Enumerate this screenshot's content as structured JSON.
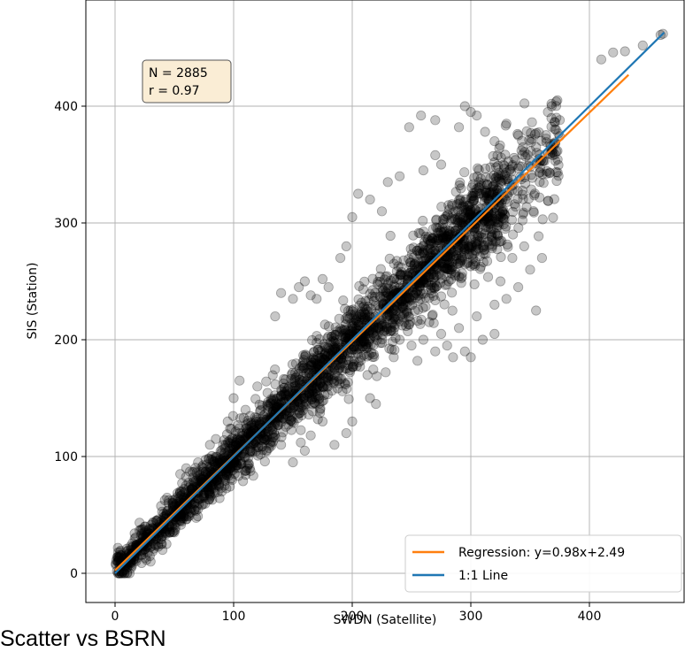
{
  "caption": "Scatter vs BSRN",
  "chart_data": {
    "type": "scatter",
    "xlabel": "SWDN (Satellite)",
    "ylabel": "SIS (Station)",
    "xlim": [
      -20,
      475
    ],
    "ylim": [
      -20,
      485
    ],
    "xticks": [
      0,
      100,
      200,
      300,
      400
    ],
    "yticks": [
      0,
      100,
      200,
      300,
      400
    ],
    "grid": true,
    "legend_position": "lower-right",
    "stats_box": {
      "n_text": "N = 2885",
      "r_text": "r = 0.97"
    },
    "n_points": 2885,
    "point_color": "#000000",
    "point_opacity": 0.22,
    "series": [
      {
        "name": "Regression: y=0.98x+2.49",
        "type": "line",
        "color": "#ff7f0e",
        "slope": 0.98,
        "intercept": 2.49,
        "x_range": [
          0,
          433
        ]
      },
      {
        "name": "1:1 Line",
        "type": "line",
        "color": "#1f77b4",
        "slope": 1.0,
        "intercept": 0,
        "x_range": [
          0,
          463
        ]
      }
    ],
    "outlier_points": [
      [
        462,
        462
      ],
      [
        460,
        461
      ],
      [
        445,
        452
      ],
      [
        430,
        447
      ],
      [
        420,
        446
      ],
      [
        410,
        440
      ],
      [
        373,
        405
      ],
      [
        368,
        402
      ],
      [
        365,
        395
      ],
      [
        375,
        388
      ],
      [
        370,
        368
      ],
      [
        248,
        382
      ],
      [
        258,
        392
      ],
      [
        270,
        388
      ],
      [
        290,
        382
      ],
      [
        295,
        400
      ],
      [
        300,
        395
      ],
      [
        305,
        392
      ],
      [
        312,
        378
      ],
      [
        320,
        370
      ],
      [
        330,
        385
      ],
      [
        340,
        375
      ],
      [
        355,
        365
      ],
      [
        270,
        358
      ],
      [
        275,
        350
      ],
      [
        260,
        345
      ],
      [
        240,
        340
      ],
      [
        230,
        335
      ],
      [
        215,
        320
      ],
      [
        205,
        325
      ],
      [
        225,
        310
      ],
      [
        200,
        305
      ],
      [
        195,
        280
      ],
      [
        190,
        270
      ],
      [
        140,
        240
      ],
      [
        150,
        235
      ],
      [
        160,
        250
      ],
      [
        165,
        238
      ],
      [
        180,
        245
      ],
      [
        135,
        220
      ],
      [
        170,
        235
      ],
      [
        175,
        252
      ],
      [
        155,
        245
      ],
      [
        235,
        185
      ],
      [
        240,
        200
      ],
      [
        250,
        195
      ],
      [
        255,
        182
      ],
      [
        260,
        200
      ],
      [
        270,
        190
      ],
      [
        285,
        185
      ],
      [
        295,
        190
      ],
      [
        300,
        185
      ],
      [
        310,
        200
      ],
      [
        320,
        205
      ],
      [
        320,
        230
      ],
      [
        330,
        235
      ],
      [
        340,
        245
      ],
      [
        350,
        260
      ],
      [
        360,
        270
      ],
      [
        335,
        270
      ],
      [
        345,
        280
      ],
      [
        325,
        250
      ],
      [
        355,
        225
      ],
      [
        290,
        210
      ],
      [
        280,
        195
      ],
      [
        275,
        205
      ],
      [
        265,
        215
      ],
      [
        305,
        220
      ],
      [
        185,
        110
      ],
      [
        195,
        120
      ],
      [
        200,
        130
      ],
      [
        175,
        130
      ],
      [
        215,
        150
      ],
      [
        220,
        145
      ],
      [
        150,
        95
      ],
      [
        140,
        110
      ],
      [
        160,
        105
      ],
      [
        165,
        118
      ],
      [
        100,
        150
      ],
      [
        110,
        140
      ],
      [
        95,
        130
      ],
      [
        120,
        160
      ],
      [
        105,
        165
      ],
      [
        80,
        110
      ],
      [
        85,
        115
      ],
      [
        60,
        90
      ],
      [
        55,
        85
      ],
      [
        70,
        95
      ],
      [
        30,
        10
      ],
      [
        40,
        20
      ],
      [
        50,
        35
      ],
      [
        70,
        55
      ],
      [
        90,
        70
      ],
      [
        20,
        25
      ],
      [
        35,
        45
      ],
      [
        25,
        40
      ],
      [
        45,
        60
      ],
      [
        15,
        20
      ]
    ]
  }
}
